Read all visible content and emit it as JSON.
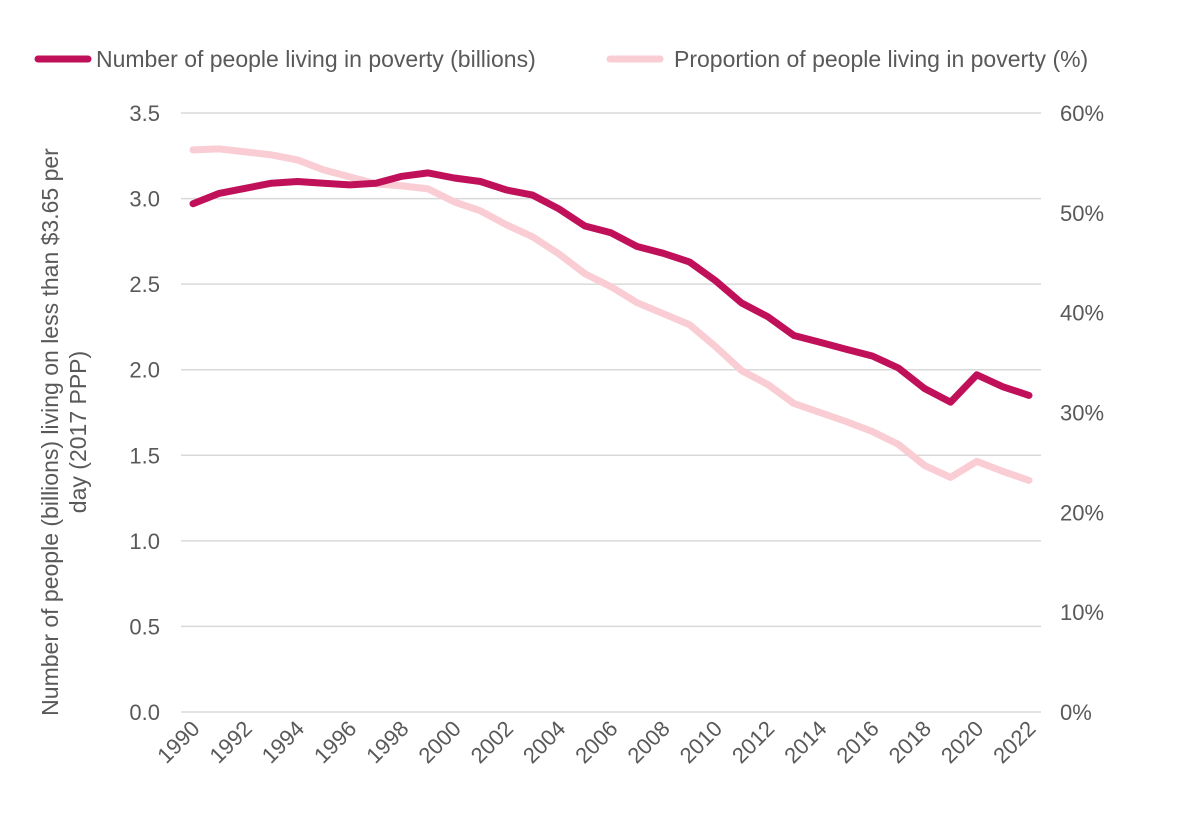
{
  "chart_data": {
    "type": "line",
    "title": "",
    "xlabel": "",
    "ylabel": "Number of people (billions) living on less than $3.65 per day (2017 PPP)",
    "ylabel_lines": [
      "Number of people (billions) living on less than $3.65 per",
      "day (2017 PPP)"
    ],
    "y2label": "",
    "ylim": [
      0,
      3.5
    ],
    "y2lim": [
      0,
      60
    ],
    "grid": true,
    "legend_position": "top",
    "x": [
      1990,
      1991,
      1992,
      1993,
      1994,
      1995,
      1996,
      1997,
      1998,
      1999,
      2000,
      2001,
      2002,
      2003,
      2004,
      2005,
      2006,
      2007,
      2008,
      2009,
      2010,
      2011,
      2012,
      2013,
      2014,
      2015,
      2016,
      2017,
      2018,
      2019,
      2020,
      2021,
      2022
    ],
    "x_tick_labels": [
      "1990",
      "1992",
      "1994",
      "1996",
      "1998",
      "2000",
      "2002",
      "2004",
      "2006",
      "2008",
      "2010",
      "2012",
      "2014",
      "2016",
      "2018",
      "2020",
      "2022"
    ],
    "y_tick_labels": [
      "0.0",
      "0.5",
      "1.0",
      "1.5",
      "2.0",
      "2.5",
      "3.0",
      "3.5"
    ],
    "y2_tick_labels": [
      "0%",
      "10%",
      "20%",
      "30%",
      "40%",
      "50%",
      "60%"
    ],
    "series": [
      {
        "name": "Number of people living in poverty (billions)",
        "axis": "left",
        "color": "#c0105a",
        "values": [
          2.97,
          3.03,
          3.06,
          3.09,
          3.1,
          3.09,
          3.08,
          3.09,
          3.13,
          3.15,
          3.12,
          3.1,
          3.05,
          3.02,
          2.94,
          2.84,
          2.8,
          2.72,
          2.68,
          2.63,
          2.52,
          2.39,
          2.31,
          2.2,
          2.16,
          2.12,
          2.08,
          2.01,
          1.89,
          1.81,
          1.97,
          1.9,
          1.85
        ]
      },
      {
        "name": "Proportion of people living in poverty (%)",
        "axis": "right",
        "color": "#f9cdd3",
        "values": [
          56.3,
          56.4,
          56.1,
          55.8,
          55.3,
          54.3,
          53.6,
          52.9,
          52.7,
          52.4,
          51.1,
          50.2,
          48.8,
          47.6,
          45.9,
          43.9,
          42.6,
          41.0,
          39.9,
          38.8,
          36.6,
          34.2,
          32.8,
          30.9,
          30.0,
          29.1,
          28.1,
          26.8,
          24.7,
          23.5,
          25.1,
          24.1,
          23.2
        ]
      }
    ]
  }
}
